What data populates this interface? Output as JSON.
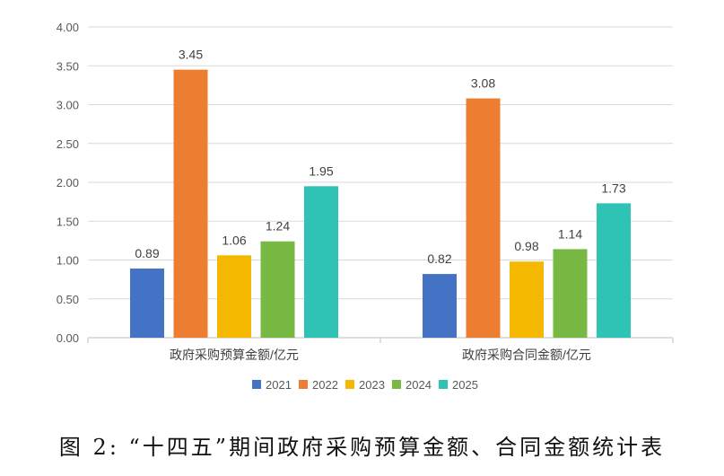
{
  "chart_data": {
    "type": "bar",
    "title": "",
    "categories": [
      "政府采购预算金额/亿元",
      "政府采购合同金额/亿元"
    ],
    "series": [
      {
        "name": "2021",
        "values": [
          0.89,
          0.82
        ],
        "color": "#4472C4"
      },
      {
        "name": "2022",
        "values": [
          3.45,
          3.08
        ],
        "color": "#ED7D31"
      },
      {
        "name": "2023",
        "values": [
          1.06,
          0.98
        ],
        "color": "#F5B800"
      },
      {
        "name": "2024",
        "values": [
          1.24,
          1.14
        ],
        "color": "#77B943"
      },
      {
        "name": "2025",
        "values": [
          1.95,
          1.73
        ],
        "color": "#2FC3B5"
      }
    ],
    "ylim": [
      0,
      4
    ],
    "yticks": [
      "0.00",
      "0.50",
      "1.00",
      "1.50",
      "2.00",
      "2.50",
      "3.00",
      "3.50",
      "4.00"
    ],
    "xlabel": "",
    "ylabel": "",
    "grid": true,
    "legend": "bottom",
    "data_labels": true
  },
  "caption": "图 2: “十四五”期间政府采购预算金额、合同金额统计表"
}
